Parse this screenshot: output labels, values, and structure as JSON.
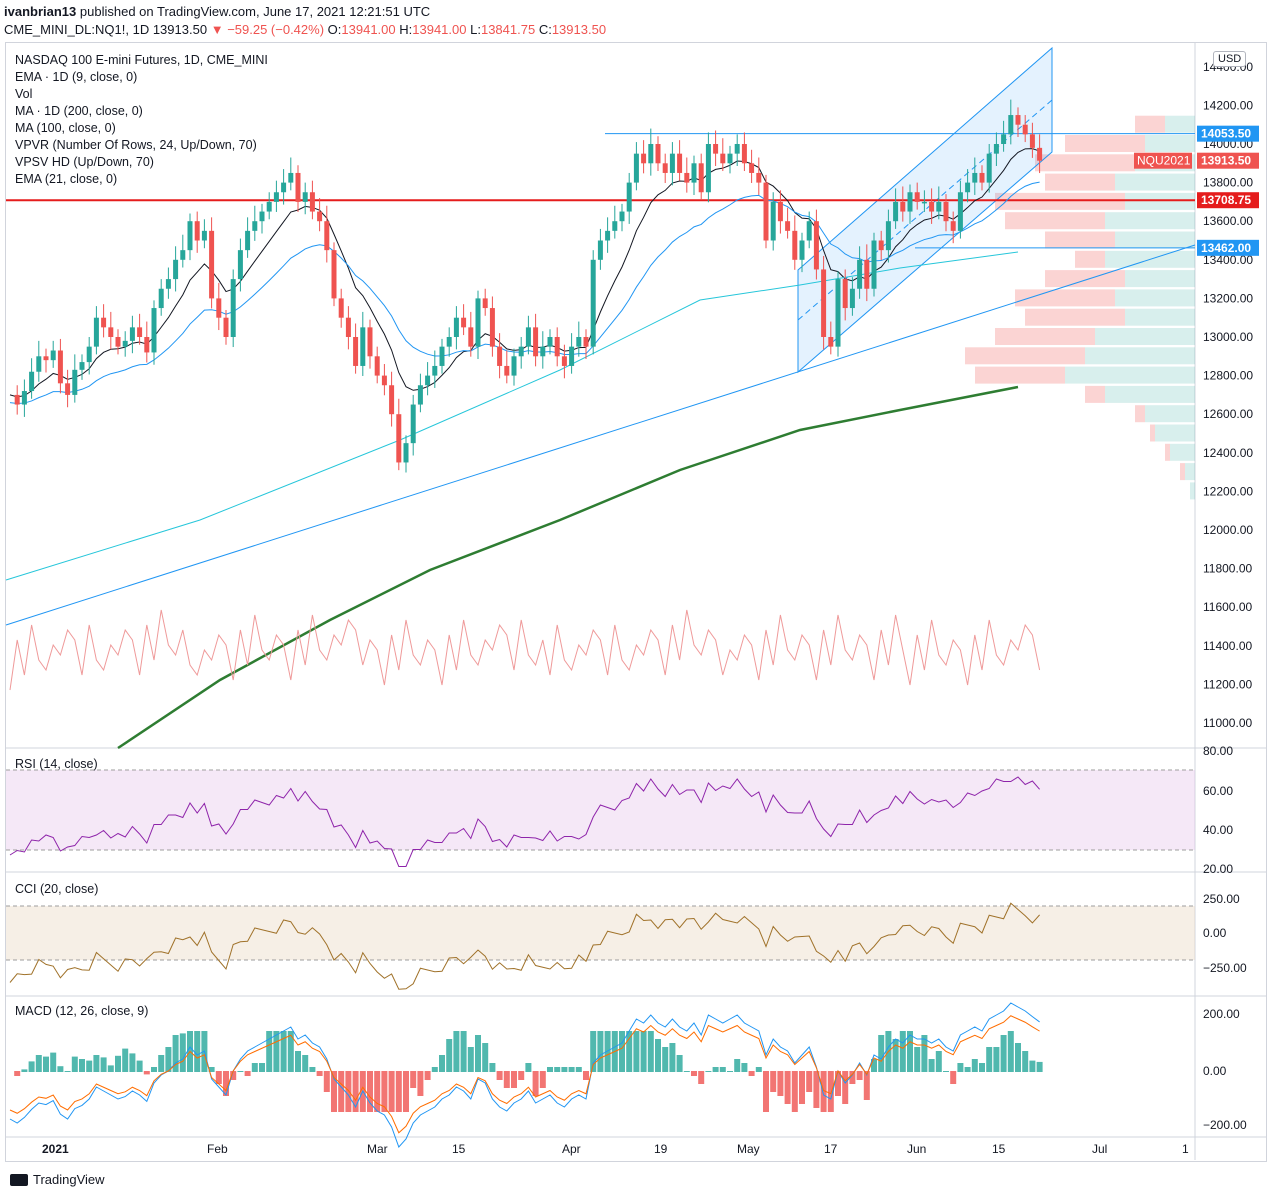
{
  "header": {
    "publisher": "ivanbrian13",
    "published_text": "published on TradingView.com, June 17, 2021 12:21:51 UTC",
    "symbol": "CME_MINI_DL:NQ1!, 1D",
    "last": "13913.50",
    "change": "−59.25 (−0.42%)",
    "open_label": "O:",
    "open": "13941.00",
    "high_label": "H:",
    "high": "13941.00",
    "low_label": "L:",
    "low": "13841.75",
    "close_label": "C:",
    "close": "13913.50"
  },
  "legend": [
    "NASDAQ 100 E-mini Futures, 1D, CME_MINI",
    "EMA · 1D (9, close, 0)",
    "Vol",
    "MA · 1D (200, close, 0)",
    "MA (100, close, 0)",
    "VPVR (Number Of Rows, 24, Up/Down, 70)",
    "VPSV HD (Up/Down, 70)",
    "EMA (21, close, 0)"
  ],
  "currency_badge": "USD",
  "panes": {
    "rsi_title": "RSI (14, close)",
    "cci_title": "CCI (20, close)",
    "macd_title": "MACD (12, 26, close, 9)"
  },
  "price_labels": [
    {
      "text": "14053.50",
      "value": 14053.5,
      "color": "#2196f3"
    },
    {
      "text": "NQU2021",
      "value": 13913.5,
      "color": "#ef5350",
      "secondary": "13913.50"
    },
    {
      "text": "13708.75",
      "value": 13708.75,
      "color": "#e51c1c"
    },
    {
      "text": "13462.00",
      "value": 13462.0,
      "color": "#2196f3"
    }
  ],
  "price_axis_ticks": [
    "14400.00",
    "14200.00",
    "14000.00",
    "13800.00",
    "13600.00",
    "13400.00",
    "13200.00",
    "13000.00",
    "12800.00",
    "12600.00",
    "12400.00",
    "12200.00",
    "12000.00",
    "11800.00",
    "11600.00",
    "11400.00",
    "11200.00",
    "11000.00"
  ],
  "rsi_axis_ticks": [
    "80.00",
    "60.00",
    "40.00",
    "20.00"
  ],
  "cci_axis_ticks": [
    "250.00",
    "0.00",
    "−250.00"
  ],
  "macd_axis_ticks": [
    "200.00",
    "0.00",
    "−200.00"
  ],
  "time_axis": [
    {
      "label": "2021",
      "bold": true
    },
    {
      "label": "Feb"
    },
    {
      "label": "Mar"
    },
    {
      "label": "15"
    },
    {
      "label": "Apr"
    },
    {
      "label": "19"
    },
    {
      "label": "May"
    },
    {
      "label": "17"
    },
    {
      "label": "Jun"
    },
    {
      "label": "15"
    },
    {
      "label": "Jul"
    },
    {
      "label": "1"
    }
  ],
  "footer": {
    "brand": "TradingView"
  },
  "chart_data": {
    "type": "candlestick",
    "title": "NASDAQ 100 E-mini Futures, 1D, CME_MINI",
    "ylim": [
      10900,
      14500
    ],
    "horizontal_lines": [
      {
        "value": 14053.5,
        "color": "#2196f3"
      },
      {
        "value": 13708.75,
        "color": "#e51c1c"
      },
      {
        "value": 13462.0,
        "color": "#2196f3"
      }
    ],
    "ohlc_path": [
      12700,
      12650,
      12720,
      12820,
      12900,
      12880,
      12930,
      12760,
      12700,
      12830,
      12870,
      12950,
      13100,
      13050,
      13000,
      12950,
      12980,
      13050,
      13000,
      12920,
      13150,
      13250,
      13300,
      13400,
      13450,
      13600,
      13500,
      13550,
      13200,
      13100,
      13000,
      13300,
      13450,
      13550,
      13600,
      13650,
      13700,
      13750,
      13800,
      13850,
      13700,
      13750,
      13650,
      13600,
      13450,
      13200,
      13100,
      13000,
      12850,
      13050,
      12900,
      12800,
      12750,
      12600,
      12350,
      12450,
      12650,
      12750,
      12800,
      12850,
      12950,
      13000,
      13100,
      13050,
      12950,
      13200,
      13150,
      12950,
      12850,
      12800,
      12900,
      12950,
      13050,
      12900,
      12950,
      13000,
      12900,
      12850,
      12950,
      13000,
      12950,
      13400,
      13500,
      13550,
      13600,
      13650,
      13800,
      13950,
      13900,
      14000,
      13900,
      13850,
      13950,
      13850,
      13800,
      13900,
      13750,
      14000,
      13950,
      13900,
      13950,
      14000,
      13900,
      13850,
      13800,
      13500,
      13700,
      13600,
      13550,
      13400,
      13500,
      13600,
      13350,
      13000,
      12950,
      13300,
      13150,
      13250,
      13400,
      13250,
      13500,
      13450,
      13600,
      13700,
      13650,
      13750,
      13700,
      13700,
      13650,
      13700,
      13600,
      13550,
      13750,
      13800,
      13850,
      13800,
      13950,
      14000,
      14050,
      14150,
      14100,
      14050,
      13980,
      13913.5
    ],
    "ema9_end": 13930,
    "ema21_end": 13800,
    "ma100_end": 13440,
    "ma200_end": 12740
  }
}
